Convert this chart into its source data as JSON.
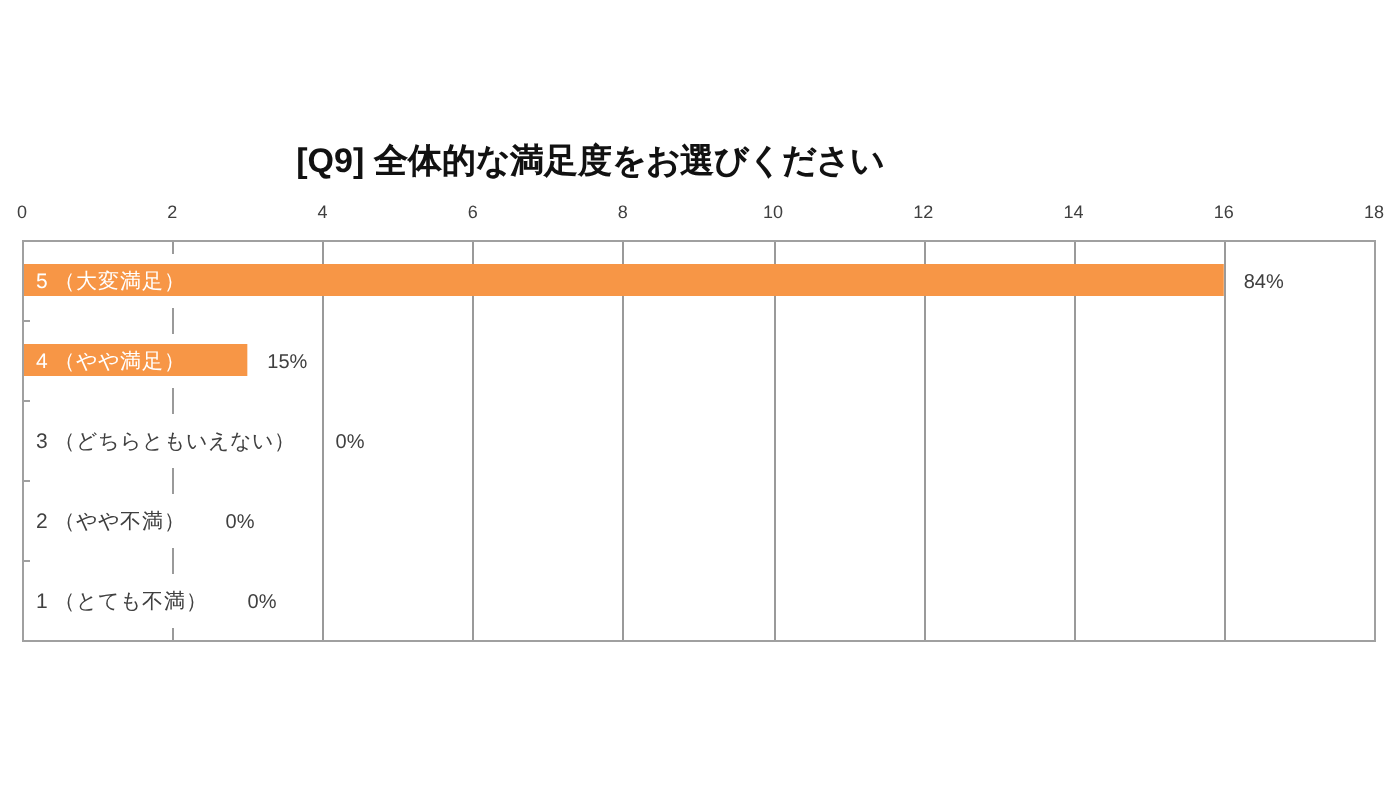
{
  "chart_data": {
    "type": "bar",
    "orientation": "horizontal",
    "title": "[Q9] 全体的な満足度をお選びください",
    "categories": [
      "5 （大変満足）",
      "4 （やや満足）",
      "3 （どちらともいえない）",
      "2 （やや不満）",
      "1 （とても不満）"
    ],
    "values": [
      16,
      3,
      0,
      0,
      0
    ],
    "color": "#f79646",
    "xlim": [
      0,
      18
    ],
    "xticks": [
      0,
      2,
      4,
      6,
      8,
      10,
      12,
      14,
      16,
      18
    ],
    "grid": "x",
    "annotations": [
      {
        "text": "84%",
        "x": 16,
        "y": "5 （大変満足）"
      },
      {
        "text": "15%",
        "x": 3,
        "y": "4 （やや満足）"
      },
      "0%",
      "0%",
      "0%"
    ]
  }
}
